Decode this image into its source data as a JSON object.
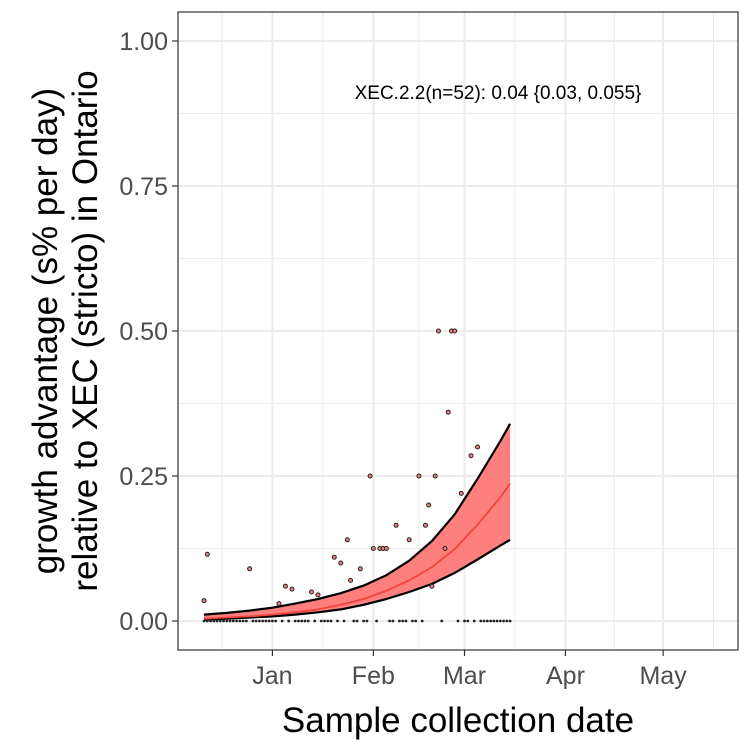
{
  "chart_data": {
    "type": "scatter",
    "title": "",
    "xlabel": "Sample collection date",
    "ylabel": [
      "growth advantage (s% per day)",
      "relative to XEC (stricto) in Ontario"
    ],
    "annotation": "XEC.2.2(n=52): 0.04 {0.03, 0.055}",
    "x_ticks": [
      {
        "date": "2025-01-01",
        "label": "Jan"
      },
      {
        "date": "2025-02-01",
        "label": "Feb"
      },
      {
        "date": "2025-03-01",
        "label": "Mar"
      },
      {
        "date": "2025-04-01",
        "label": "Apr"
      },
      {
        "date": "2025-05-01",
        "label": "May"
      }
    ],
    "y_ticks": [
      {
        "value": 0.0,
        "label": "0.00"
      },
      {
        "value": 0.25,
        "label": "0.25"
      },
      {
        "value": 0.5,
        "label": "0.50"
      },
      {
        "value": 0.75,
        "label": "0.75"
      },
      {
        "value": 1.0,
        "label": "1.00"
      }
    ],
    "xlim": [
      "2024-12-03",
      "2025-05-24"
    ],
    "ylim": [
      -0.05,
      1.05
    ],
    "grid": true,
    "colors": {
      "fit_line": "#f0443a",
      "ci_fill": "#ff7f7f",
      "ci_border": "#000000",
      "points_fill": "#f08080",
      "points_stroke": "#222222",
      "grid": "#ebebeb",
      "panel_border": "#333333"
    },
    "fit": {
      "dates": [
        "2024-12-11",
        "2024-12-18",
        "2024-12-25",
        "2025-01-01",
        "2025-01-08",
        "2025-01-15",
        "2025-01-22",
        "2025-01-29",
        "2025-02-05",
        "2025-02-12",
        "2025-02-19",
        "2025-02-26",
        "2025-03-05",
        "2025-03-12",
        "2025-03-15"
      ],
      "mid": [
        0.004,
        0.006,
        0.008,
        0.011,
        0.015,
        0.02,
        0.028,
        0.038,
        0.052,
        0.07,
        0.093,
        0.124,
        0.166,
        0.213,
        0.237
      ],
      "lower": [
        0.002,
        0.004,
        0.006,
        0.008,
        0.011,
        0.015,
        0.02,
        0.028,
        0.038,
        0.05,
        0.064,
        0.083,
        0.106,
        0.13,
        0.14
      ],
      "upper": [
        0.011,
        0.014,
        0.018,
        0.023,
        0.03,
        0.038,
        0.048,
        0.061,
        0.079,
        0.104,
        0.138,
        0.184,
        0.245,
        0.31,
        0.34
      ]
    },
    "points": [
      {
        "date": "2024-12-11",
        "value": 0.035
      },
      {
        "date": "2024-12-12",
        "value": 0.115
      },
      {
        "date": "2024-12-25",
        "value": 0.09
      },
      {
        "date": "2025-01-03",
        "value": 0.03
      },
      {
        "date": "2025-01-05",
        "value": 0.06
      },
      {
        "date": "2025-01-07",
        "value": 0.055
      },
      {
        "date": "2025-01-13",
        "value": 0.05
      },
      {
        "date": "2025-01-15",
        "value": 0.045
      },
      {
        "date": "2025-01-20",
        "value": 0.11
      },
      {
        "date": "2025-01-22",
        "value": 0.1
      },
      {
        "date": "2025-01-24",
        "value": 0.14
      },
      {
        "date": "2025-01-25",
        "value": 0.07
      },
      {
        "date": "2025-01-28",
        "value": 0.09
      },
      {
        "date": "2025-01-31",
        "value": 0.25
      },
      {
        "date": "2025-02-01",
        "value": 0.125
      },
      {
        "date": "2025-02-03",
        "value": 0.125
      },
      {
        "date": "2025-02-04",
        "value": 0.125
      },
      {
        "date": "2025-02-05",
        "value": 0.125
      },
      {
        "date": "2025-02-08",
        "value": 0.165
      },
      {
        "date": "2025-02-12",
        "value": 0.14
      },
      {
        "date": "2025-02-15",
        "value": 0.25
      },
      {
        "date": "2025-02-17",
        "value": 0.165
      },
      {
        "date": "2025-02-18",
        "value": 0.2
      },
      {
        "date": "2025-02-19",
        "value": 0.06
      },
      {
        "date": "2025-02-20",
        "value": 0.25
      },
      {
        "date": "2025-02-21",
        "value": 0.5
      },
      {
        "date": "2025-02-23",
        "value": 0.125
      },
      {
        "date": "2025-02-24",
        "value": 0.36
      },
      {
        "date": "2025-02-25",
        "value": 0.5
      },
      {
        "date": "2025-02-26",
        "value": 0.5
      },
      {
        "date": "2025-02-28",
        "value": 0.22
      },
      {
        "date": "2025-03-03",
        "value": 0.285
      },
      {
        "date": "2025-03-05",
        "value": 0.3
      }
    ],
    "zero_point_dates": [
      "2024-12-11",
      "2024-12-12",
      "2024-12-13",
      "2024-12-14",
      "2024-12-15",
      "2024-12-16",
      "2024-12-17",
      "2024-12-18",
      "2024-12-19",
      "2024-12-20",
      "2024-12-21",
      "2024-12-22",
      "2024-12-23",
      "2024-12-24",
      "2024-12-26",
      "2024-12-27",
      "2024-12-28",
      "2024-12-29",
      "2024-12-30",
      "2024-12-31",
      "2025-01-01",
      "2025-01-02",
      "2025-01-04",
      "2025-01-06",
      "2025-01-08",
      "2025-01-09",
      "2025-01-10",
      "2025-01-11",
      "2025-01-12",
      "2025-01-14",
      "2025-01-16",
      "2025-01-17",
      "2025-01-18",
      "2025-01-19",
      "2025-01-21",
      "2025-01-23",
      "2025-01-26",
      "2025-01-27",
      "2025-01-29",
      "2025-01-30",
      "2025-02-02",
      "2025-02-06",
      "2025-02-07",
      "2025-02-09",
      "2025-02-10",
      "2025-02-11",
      "2025-02-13",
      "2025-02-14",
      "2025-02-16",
      "2025-02-22",
      "2025-02-27",
      "2025-03-01",
      "2025-03-02",
      "2025-03-04",
      "2025-03-06",
      "2025-03-07",
      "2025-03-08",
      "2025-03-09",
      "2025-03-10",
      "2025-03-11",
      "2025-03-12",
      "2025-03-13",
      "2025-03-14",
      "2025-03-15"
    ]
  }
}
